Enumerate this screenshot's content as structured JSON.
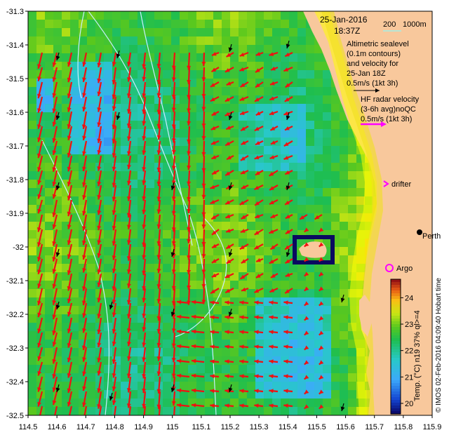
{
  "header": {
    "date": "25-Jan-2016",
    "time": "18:37Z",
    "scale_200": "200",
    "scale_1000": "1000m"
  },
  "legend": {
    "altimetric_lines": [
      "Altimetric sealevel",
      "(0.1m contours)",
      "and velocity for",
      "25-Jan 18Z",
      "0.5m/s (1kt 3h)"
    ],
    "hf_lines": [
      "HF radar velocity",
      "(3-6h avg)noQC",
      "0.5m/s (1kt 3h)"
    ],
    "drifter_label": "drifter",
    "argo_label": "Argo",
    "perth_label": "Perth"
  },
  "axes": {
    "x_ticks": [
      "114.5",
      "114.6",
      "114.7",
      "114.8",
      "114.9",
      "115",
      "115.1",
      "115.2",
      "115.3",
      "115.4",
      "115.5",
      "115.6",
      "115.7",
      "115.8",
      "115.9"
    ],
    "y_ticks": [
      "-31.3",
      "-31.4",
      "-31.5",
      "-31.6",
      "-31.7",
      "-31.8",
      "-31.9",
      "-32",
      "-32.1",
      "-32.2",
      "-32.3",
      "-32.4",
      "-32.5"
    ],
    "x_range": [
      114.5,
      115.9
    ],
    "y_range": [
      -32.5,
      -31.3
    ]
  },
  "colorbar": {
    "label": "Temp. (°C) n19 37% ql>=4",
    "ticks": [
      "20",
      "21",
      "22",
      "23",
      "24"
    ],
    "range": [
      19.6,
      24.7
    ]
  },
  "credit": "© IMOS 02-Feb-2016 04:09:40 Hobart time",
  "colors": {
    "land": "#f8c89c",
    "arrow_hf": "#ee1111",
    "arrow_alt": "#000000",
    "contour": "#c8f0ff",
    "drifter": "#ff00ff",
    "argo": "#ff00ff"
  }
}
